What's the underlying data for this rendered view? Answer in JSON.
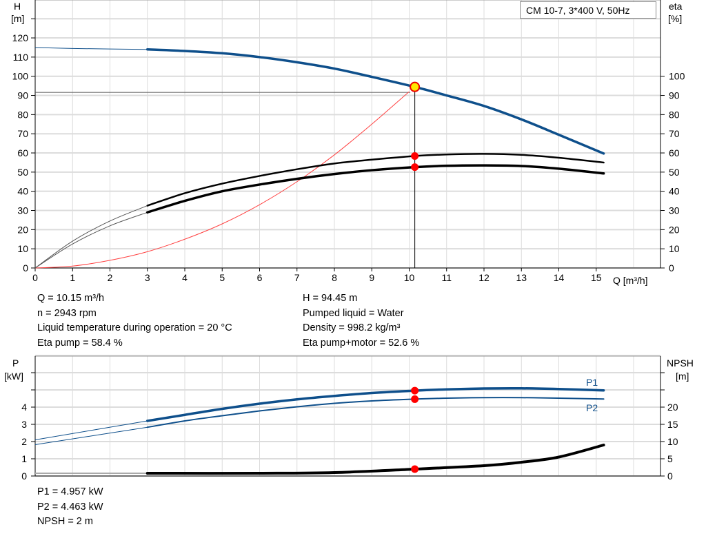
{
  "title": "CM 10-7, 3*400 V, 50Hz",
  "chart_data": [
    {
      "type": "line",
      "xlabel": "Q [m³/h]",
      "ylabel": "H",
      "ylabel_unit": "[m]",
      "y2label": "eta",
      "y2label_unit": "[%]",
      "xlim": [
        0,
        16.7
      ],
      "ylim": [
        0,
        140
      ],
      "x_ticks": [
        "0",
        "1",
        "2",
        "3",
        "4",
        "5",
        "6",
        "7",
        "8",
        "9",
        "10",
        "11",
        "12",
        "13",
        "14",
        "15"
      ],
      "y_ticks": [
        "0",
        "10",
        "20",
        "30",
        "40",
        "50",
        "60",
        "70",
        "80",
        "90",
        "100",
        "110",
        "120"
      ],
      "y2_ticks": [
        "0",
        "10",
        "20",
        "30",
        "40",
        "50",
        "60",
        "70",
        "80",
        "90",
        "100"
      ],
      "grid": true,
      "series": [
        {
          "key": "H",
          "color": "#0e4f8b",
          "axis": "left",
          "x": [
            0,
            1,
            2,
            3,
            4,
            5,
            6,
            7,
            8,
            9,
            10.15,
            11,
            12,
            13,
            14,
            15.2
          ],
          "y": [
            115,
            114.5,
            114.2,
            114,
            113.2,
            112,
            110,
            107.3,
            104,
            99.7,
            94.45,
            90,
            84.5,
            77.5,
            69.5,
            59.7
          ]
        },
        {
          "key": "eta_pump",
          "color": "#000000",
          "axis": "right",
          "x": [
            0,
            1,
            2,
            3,
            4,
            5,
            6,
            7,
            8,
            9,
            10.15,
            11,
            12,
            13,
            14,
            15.2
          ],
          "y": [
            0,
            14,
            24.5,
            32.5,
            39,
            44,
            48,
            51.5,
            54.5,
            56.5,
            58.4,
            59.2,
            59.5,
            59,
            57.5,
            55
          ]
        },
        {
          "key": "eta_pump_motor",
          "color": "#000000",
          "axis": "right",
          "x": [
            0,
            1,
            2,
            3,
            4,
            5,
            6,
            7,
            8,
            9,
            10.15,
            11,
            12,
            13,
            14,
            15.2
          ],
          "y": [
            0,
            12.5,
            22,
            29,
            35,
            40,
            43.5,
            46.5,
            49,
            51,
            52.6,
            53.3,
            53.5,
            53.2,
            51.8,
            49.3
          ]
        },
        {
          "key": "system_curve",
          "color": "#ff4040",
          "axis": "left",
          "x": [
            0,
            1,
            2,
            3,
            4,
            5,
            6,
            7,
            8,
            9,
            10
          ],
          "y": [
            0,
            1,
            4,
            8.5,
            15,
            23,
            33,
            45,
            59,
            75,
            92
          ]
        }
      ],
      "duty_point": {
        "Q": 10.15,
        "H": 94.45,
        "eta_pump": 58.4,
        "eta_pump_motor": 52.6
      }
    },
    {
      "type": "line",
      "ylabel": "P",
      "ylabel_unit": "[kW]",
      "y2label": "NPSH",
      "y2label_unit": "[m]",
      "xlim": [
        0,
        16.7
      ],
      "ylim": [
        0,
        7
      ],
      "y_ticks": [
        "0",
        "1",
        "2",
        "3",
        "4"
      ],
      "y2_ticks": [
        "0",
        "5",
        "10",
        "15",
        "20"
      ],
      "grid": true,
      "series": [
        {
          "key": "P1",
          "name": "P1",
          "color": "#0e4f8b",
          "axis": "left",
          "x": [
            0,
            3,
            4,
            5,
            6,
            7,
            8,
            9,
            10.15,
            11,
            12,
            13,
            14,
            15.2
          ],
          "y": [
            2.1,
            3.2,
            3.55,
            3.9,
            4.2,
            4.45,
            4.65,
            4.82,
            4.957,
            5.03,
            5.08,
            5.09,
            5.05,
            4.97
          ]
        },
        {
          "key": "P2",
          "name": "P2",
          "color": "#0e4f8b",
          "axis": "left",
          "x": [
            0,
            3,
            4,
            5,
            6,
            7,
            8,
            9,
            10.15,
            11,
            12,
            13,
            14,
            15.2
          ],
          "y": [
            1.82,
            2.83,
            3.2,
            3.5,
            3.78,
            4.02,
            4.22,
            4.36,
            4.463,
            4.52,
            4.55,
            4.55,
            4.52,
            4.47
          ]
        },
        {
          "key": "NPSH",
          "color": "#000000",
          "axis": "right",
          "x": [
            0,
            3,
            6,
            8,
            10.15,
            12,
            13,
            14,
            15.2
          ],
          "y": [
            0.8,
            0.8,
            0.8,
            1,
            2,
            3,
            4,
            5.5,
            9
          ]
        }
      ],
      "duty_point": {
        "Q": 10.15,
        "P1": 4.957,
        "P2": 4.463,
        "NPSH": 2
      }
    }
  ],
  "info_top_left": [
    "Q = 10.15 m³/h",
    "n = 2943 rpm",
    "Liquid temperature during operation = 20 °C",
    "Eta pump = 58.4 %"
  ],
  "info_top_right": [
    "H = 94.45 m",
    "Pumped liquid = Water",
    "Density = 998.2 kg/m³",
    "Eta pump+motor = 52.6 %"
  ],
  "info_bottom": [
    "P1 = 4.957 kW",
    "P2 = 4.463 kW",
    "NPSH = 2 m"
  ]
}
